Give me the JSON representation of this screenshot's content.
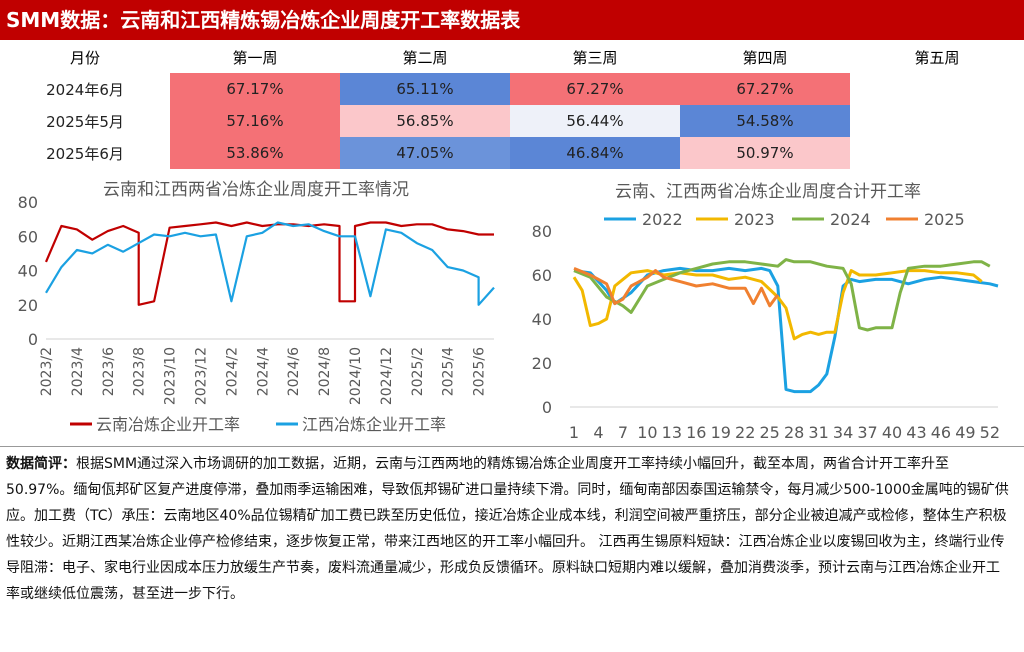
{
  "header": {
    "title": "SMM数据：云南和江西精炼锡冶炼企业周度开工率数据表"
  },
  "table": {
    "headers": [
      "月份",
      "第一周",
      "第二周",
      "第三周",
      "第四周",
      "第五周"
    ],
    "rows": [
      {
        "label": "2024年6月",
        "cells": [
          {
            "text": "67.17%",
            "color": "#f47176"
          },
          {
            "text": "65.11%",
            "color": "#5b86d6"
          },
          {
            "text": "67.27%",
            "color": "#f47176"
          },
          {
            "text": "67.27%",
            "color": "#f47176"
          },
          {
            "text": "",
            "color": "#ffffff"
          }
        ]
      },
      {
        "label": "2025年5月",
        "cells": [
          {
            "text": "57.16%",
            "color": "#f47176"
          },
          {
            "text": "56.85%",
            "color": "#fbc7ca"
          },
          {
            "text": "56.44%",
            "color": "#eef1f9"
          },
          {
            "text": "54.58%",
            "color": "#5b86d6"
          },
          {
            "text": "",
            "color": "#ffffff"
          }
        ]
      },
      {
        "label": "2025年6月",
        "cells": [
          {
            "text": "53.86%",
            "color": "#f47176"
          },
          {
            "text": "47.05%",
            "color": "#6b93da"
          },
          {
            "text": "46.84%",
            "color": "#5b86d6"
          },
          {
            "text": "50.97%",
            "color": "#fbc7ca"
          },
          {
            "text": "",
            "color": "#ffffff"
          }
        ]
      }
    ]
  },
  "chart_data": [
    {
      "type": "line",
      "title": "云南和江西两省冶炼企业周度开工率情况",
      "ylim": [
        0,
        80
      ],
      "yticks": [
        "0",
        "20",
        "40",
        "60",
        "80"
      ],
      "xticks": [
        "2023/2",
        "2023/4",
        "2023/6",
        "2023/8",
        "2023/10",
        "2023/12",
        "2024/2",
        "2024/4",
        "2024/6",
        "2024/8",
        "2024/10",
        "2024/12",
        "2025/2",
        "2025/4",
        "2025/6"
      ],
      "x_start": "2023/2",
      "x_end": "2025/7",
      "grid": false,
      "legend_position": "bottom",
      "series": [
        {
          "name": "云南冶炼企业开工率",
          "color": "#c00000",
          "points": [
            [
              "2023/2",
              45
            ],
            [
              "2023/3",
              66
            ],
            [
              "2023/4",
              64
            ],
            [
              "2023/5",
              58
            ],
            [
              "2023/6",
              63
            ],
            [
              "2023/7",
              66
            ],
            [
              "2023/8",
              62
            ],
            [
              "2023/8",
              20
            ],
            [
              "2023/9",
              22
            ],
            [
              "2023/10",
              65
            ],
            [
              "2023/11",
              66
            ],
            [
              "2023/12",
              67
            ],
            [
              "2024/1",
              68
            ],
            [
              "2024/2",
              66
            ],
            [
              "2024/3",
              68
            ],
            [
              "2024/4",
              66
            ],
            [
              "2024/5",
              67
            ],
            [
              "2024/6",
              67
            ],
            [
              "2024/7",
              66
            ],
            [
              "2024/8",
              67
            ],
            [
              "2024/9",
              66
            ],
            [
              "2024/9",
              22
            ],
            [
              "2024/10",
              22
            ],
            [
              "2024/10",
              66
            ],
            [
              "2024/11",
              68
            ],
            [
              "2024/12",
              68
            ],
            [
              "2025/1",
              66
            ],
            [
              "2025/2",
              67
            ],
            [
              "2025/3",
              67
            ],
            [
              "2025/4",
              64
            ],
            [
              "2025/5",
              63
            ],
            [
              "2025/6",
              61
            ],
            [
              "2025/7",
              61
            ]
          ]
        },
        {
          "name": "江西冶炼企业开工率",
          "color": "#1ba1e2",
          "points": [
            [
              "2023/2",
              27
            ],
            [
              "2023/3",
              42
            ],
            [
              "2023/4",
              52
            ],
            [
              "2023/5",
              50
            ],
            [
              "2023/6",
              55
            ],
            [
              "2023/7",
              51
            ],
            [
              "2023/8",
              56
            ],
            [
              "2023/9",
              61
            ],
            [
              "2023/10",
              60
            ],
            [
              "2023/11",
              62
            ],
            [
              "2023/12",
              60
            ],
            [
              "2024/1",
              61
            ],
            [
              "2024/2",
              22
            ],
            [
              "2024/3",
              60
            ],
            [
              "2024/4",
              62
            ],
            [
              "2024/5",
              68
            ],
            [
              "2024/6",
              66
            ],
            [
              "2024/7",
              67
            ],
            [
              "2024/8",
              63
            ],
            [
              "2024/9",
              60
            ],
            [
              "2024/10",
              60
            ],
            [
              "2024/11",
              25
            ],
            [
              "2024/12",
              64
            ],
            [
              "2025/1",
              62
            ],
            [
              "2025/2",
              56
            ],
            [
              "2025/3",
              52
            ],
            [
              "2025/4",
              42
            ],
            [
              "2025/5",
              40
            ],
            [
              "2025/6",
              36
            ],
            [
              "2025/6",
              20
            ],
            [
              "2025/7",
              30
            ]
          ]
        }
      ]
    },
    {
      "type": "line",
      "title": "云南、江西两省冶炼企业周度合计开工率",
      "ylim": [
        0,
        80
      ],
      "yticks": [
        "0",
        "20",
        "40",
        "60",
        "80"
      ],
      "xticks": [
        "1",
        "4",
        "7",
        "10",
        "13",
        "16",
        "19",
        "22",
        "25",
        "28",
        "31",
        "34",
        "37",
        "40",
        "43",
        "46",
        "49",
        "52"
      ],
      "xlim": [
        1,
        53
      ],
      "grid": false,
      "legend_position": "top",
      "series": [
        {
          "name": "2022",
          "color": "#1ba1e2",
          "points": [
            [
              1,
              62
            ],
            [
              3,
              61
            ],
            [
              5,
              53
            ],
            [
              6,
              47
            ],
            [
              8,
              52
            ],
            [
              10,
              60
            ],
            [
              12,
              62
            ],
            [
              14,
              63
            ],
            [
              16,
              62
            ],
            [
              18,
              62
            ],
            [
              20,
              63
            ],
            [
              22,
              62
            ],
            [
              24,
              63
            ],
            [
              25,
              62
            ],
            [
              26,
              55
            ],
            [
              27,
              8
            ],
            [
              28,
              7
            ],
            [
              29,
              7
            ],
            [
              30,
              7
            ],
            [
              31,
              10
            ],
            [
              32,
              15
            ],
            [
              33,
              32
            ],
            [
              34,
              55
            ],
            [
              35,
              58
            ],
            [
              36,
              57
            ],
            [
              38,
              58
            ],
            [
              40,
              58
            ],
            [
              42,
              56
            ],
            [
              44,
              58
            ],
            [
              46,
              59
            ],
            [
              48,
              58
            ],
            [
              50,
              57
            ],
            [
              52,
              56
            ],
            [
              53,
              55
            ]
          ]
        },
        {
          "name": "2023",
          "color": "#f2b800",
          "points": [
            [
              1,
              59
            ],
            [
              2,
              53
            ],
            [
              3,
              37
            ],
            [
              4,
              38
            ],
            [
              5,
              40
            ],
            [
              6,
              55
            ],
            [
              7,
              58
            ],
            [
              8,
              61
            ],
            [
              10,
              62
            ],
            [
              12,
              60
            ],
            [
              14,
              61
            ],
            [
              16,
              60
            ],
            [
              18,
              60
            ],
            [
              20,
              58
            ],
            [
              22,
              59
            ],
            [
              24,
              57
            ],
            [
              26,
              50
            ],
            [
              27,
              45
            ],
            [
              28,
              31
            ],
            [
              29,
              33
            ],
            [
              30,
              34
            ],
            [
              31,
              33
            ],
            [
              32,
              34
            ],
            [
              33,
              34
            ],
            [
              34,
              52
            ],
            [
              35,
              62
            ],
            [
              36,
              60
            ],
            [
              38,
              60
            ],
            [
              40,
              61
            ],
            [
              42,
              62
            ],
            [
              44,
              62
            ],
            [
              46,
              61
            ],
            [
              48,
              61
            ],
            [
              50,
              60
            ],
            [
              51,
              57
            ]
          ]
        },
        {
          "name": "2024",
          "color": "#7fb347",
          "points": [
            [
              1,
              62
            ],
            [
              3,
              59
            ],
            [
              5,
              50
            ],
            [
              7,
              46
            ],
            [
              8,
              43
            ],
            [
              10,
              55
            ],
            [
              12,
              58
            ],
            [
              14,
              61
            ],
            [
              16,
              63
            ],
            [
              18,
              65
            ],
            [
              20,
              66
            ],
            [
              22,
              66
            ],
            [
              24,
              65
            ],
            [
              26,
              64
            ],
            [
              27,
              67
            ],
            [
              28,
              66
            ],
            [
              30,
              66
            ],
            [
              32,
              64
            ],
            [
              34,
              63
            ],
            [
              35,
              56
            ],
            [
              36,
              36
            ],
            [
              37,
              35
            ],
            [
              38,
              36
            ],
            [
              39,
              36
            ],
            [
              40,
              36
            ],
            [
              41,
              52
            ],
            [
              42,
              63
            ],
            [
              44,
              64
            ],
            [
              46,
              64
            ],
            [
              48,
              65
            ],
            [
              50,
              66
            ],
            [
              51,
              66
            ],
            [
              52,
              64
            ]
          ]
        },
        {
          "name": "2025",
          "color": "#f08030",
          "points": [
            [
              1,
              63
            ],
            [
              3,
              60
            ],
            [
              5,
              56
            ],
            [
              6,
              47
            ],
            [
              7,
              49
            ],
            [
              8,
              55
            ],
            [
              10,
              59
            ],
            [
              11,
              62
            ],
            [
              12,
              59
            ],
            [
              14,
              57
            ],
            [
              16,
              55
            ],
            [
              18,
              56
            ],
            [
              20,
              54
            ],
            [
              22,
              54
            ],
            [
              23,
              47
            ],
            [
              24,
              54
            ],
            [
              25,
              46
            ],
            [
              26,
              51
            ]
          ]
        }
      ]
    }
  ],
  "comment": {
    "label": "数据简评：",
    "text": "根据SMM通过深入市场调研的加工数据，近期，云南与江西两地的精炼锡冶炼企业周度开工率持续小幅回升，截至本周，两省合计开工率升至50.97%。缅甸佤邦矿区复产进度停滞，叠加雨季运输困难，导致佤邦锡矿进口量持续下滑。同时，缅甸南部因泰国运输禁令，每月减少500-1000金属吨的锡矿供应。加工费（TC）承压：云南地区40%品位锡精矿加工费已跌至历史低位，接近冶炼企业成本线，利润空间被严重挤压，部分企业被迫减产或检修，整体生产积极性较少。近期江西某冶炼企业停产检修结束，逐步恢复正常，带来江西地区的开工率小幅回升。 江西再生锡原料短缺：江西冶炼企业以废锡回收为主，终端行业传导阻滞：电子、家电行业因成本压力放缓生产节奏，废料流通量减少，形成负反馈循环。原料缺口短期内难以缓解，叠加消费淡季，预计云南与江西冶炼企业开工率或继续低位震荡，甚至进一步下行。"
  }
}
